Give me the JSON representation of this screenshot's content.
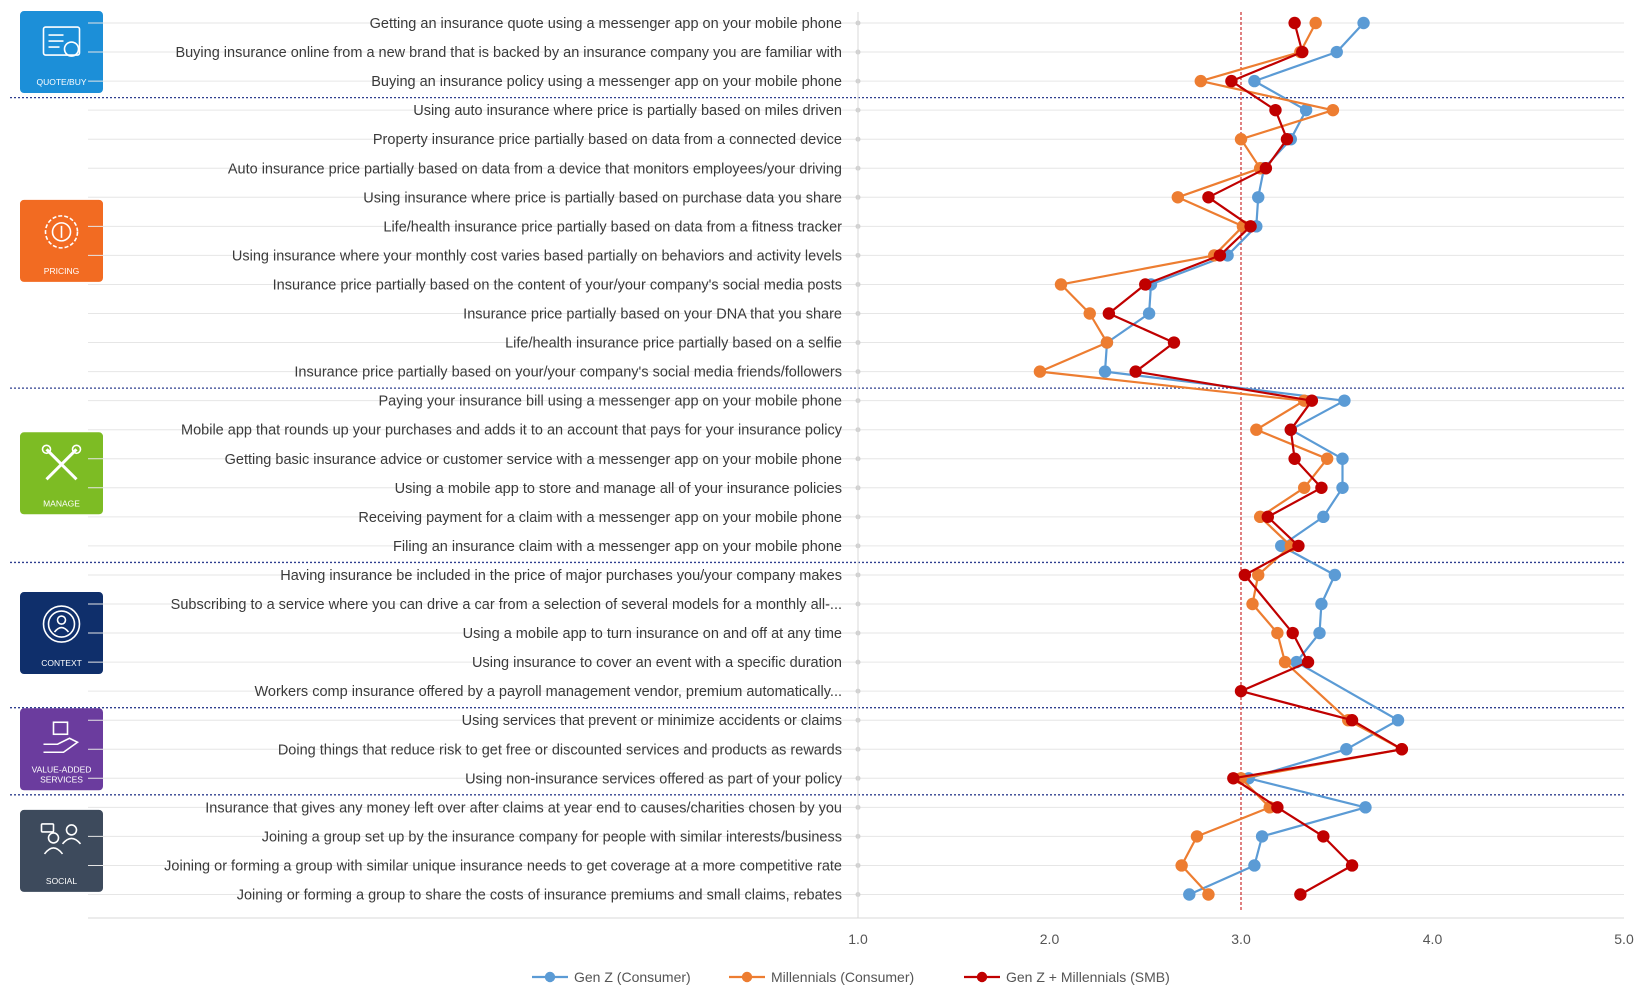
{
  "chart_data": {
    "type": "line",
    "orientation": "horizontal",
    "xlim": [
      1.0,
      5.0
    ],
    "x_ticks": [
      "1.0",
      "2.0",
      "3.0",
      "4.0",
      "5.0"
    ],
    "reference_line": 3.0,
    "legend_position": "bottom",
    "categories": [
      "Getting an insurance quote using a messenger app on your mobile phone",
      "Buying insurance online from a new brand that is backed by an insurance company you are familiar with",
      "Buying an insurance policy using a messenger app on your mobile phone",
      "Using auto insurance where price is partially based on miles driven",
      "Property insurance price partially based on data from a connected device",
      "Auto insurance price partially based on data from a device that monitors employees/your driving",
      "Using insurance where price is partially based on purchase data you share",
      "Life/health insurance price partially based on data from a fitness tracker",
      "Using insurance where your monthly cost varies based partially on behaviors and activity levels",
      "Insurance price partially based on the content of your/your company's social media posts",
      "Insurance price partially based on your DNA that you share",
      "Life/health insurance price partially based on a selfie",
      "Insurance price partially based on your/your company's social media friends/followers",
      "Paying your insurance bill using a messenger app on your mobile phone",
      "Mobile app that rounds up your purchases and adds it to an account that pays for your insurance policy",
      "Getting basic insurance advice or customer service with a messenger app on your mobile phone",
      "Using a mobile app to store and manage all of your insurance policies",
      "Receiving payment for a claim with a messenger app on your mobile phone",
      "Filing an insurance claim with a messenger app on your mobile phone",
      "Having insurance be included in the price of major purchases you/your company makes",
      "Subscribing to a service where you can drive a car from a selection of several models for a monthly all-...",
      "Using a mobile app to turn insurance on and off at any time",
      "Using insurance to cover an event with a specific duration",
      "Workers comp insurance offered by a payroll management vendor, premium automatically...",
      "Using services that prevent or minimize accidents or claims",
      "Doing things that reduce risk to get free or discounted services and products as rewards",
      "Using non-insurance services offered as part of your policy",
      "Insurance that gives any money left over after claims at year end to causes/charities chosen by you",
      "Joining a group set up by the insurance company for people with similar interests/business",
      "Joining or forming a group with similar unique insurance needs to get coverage at a more competitive rate",
      "Joining or forming a group to share the costs of insurance premiums and small claims, rebates"
    ],
    "series": [
      {
        "name": "Gen Z (Consumer)",
        "color": "#5B9BD5",
        "values": [
          3.64,
          3.5,
          3.07,
          3.34,
          3.26,
          3.12,
          3.09,
          3.08,
          2.93,
          2.53,
          2.52,
          2.3,
          2.29,
          3.54,
          3.26,
          3.53,
          3.53,
          3.43,
          3.21,
          3.49,
          3.42,
          3.41,
          3.29,
          null,
          3.82,
          3.55,
          3.04,
          3.65,
          3.11,
          3.07,
          2.73
        ]
      },
      {
        "name": "Millennials (Consumer)",
        "color": "#ED7D31",
        "values": [
          3.39,
          3.31,
          2.79,
          3.48,
          3.0,
          3.1,
          2.67,
          3.01,
          2.86,
          2.06,
          2.21,
          2.3,
          1.95,
          3.33,
          3.08,
          3.45,
          3.33,
          3.1,
          3.26,
          3.09,
          3.06,
          3.19,
          3.23,
          null,
          3.56,
          3.84,
          3.0,
          3.15,
          2.77,
          2.69,
          2.83
        ]
      },
      {
        "name": "Gen Z + Millennials (SMB)",
        "color": "#C00000",
        "values": [
          3.28,
          3.32,
          2.95,
          3.18,
          3.24,
          3.13,
          2.83,
          3.05,
          2.89,
          2.5,
          2.31,
          2.65,
          2.45,
          3.37,
          3.26,
          3.28,
          3.42,
          3.14,
          3.3,
          3.02,
          null,
          3.27,
          3.35,
          3.0,
          3.58,
          3.84,
          2.96,
          3.19,
          3.43,
          3.58,
          3.31
        ]
      }
    ],
    "groups": [
      {
        "label": "QUOTE/BUY",
        "start": 0,
        "end": 2,
        "color": "#1C8FD8",
        "icon": "quote-buy-icon"
      },
      {
        "label": "PRICING",
        "start": 3,
        "end": 12,
        "color": "#F26B22",
        "icon": "pricing-icon"
      },
      {
        "label": "MANAGE",
        "start": 13,
        "end": 18,
        "color": "#7DBC24",
        "icon": "manage-icon"
      },
      {
        "label": "CONTEXT",
        "start": 19,
        "end": 23,
        "color": "#0F2F6B",
        "icon": "context-icon"
      },
      {
        "label": "VALUE-ADDED SERVICES",
        "start": 24,
        "end": 26,
        "color": "#6B3C9E",
        "icon": "value-added-services-icon"
      },
      {
        "label": "SOCIAL",
        "start": 27,
        "end": 30,
        "color": "#3D4A5C",
        "icon": "social-icon"
      }
    ]
  }
}
